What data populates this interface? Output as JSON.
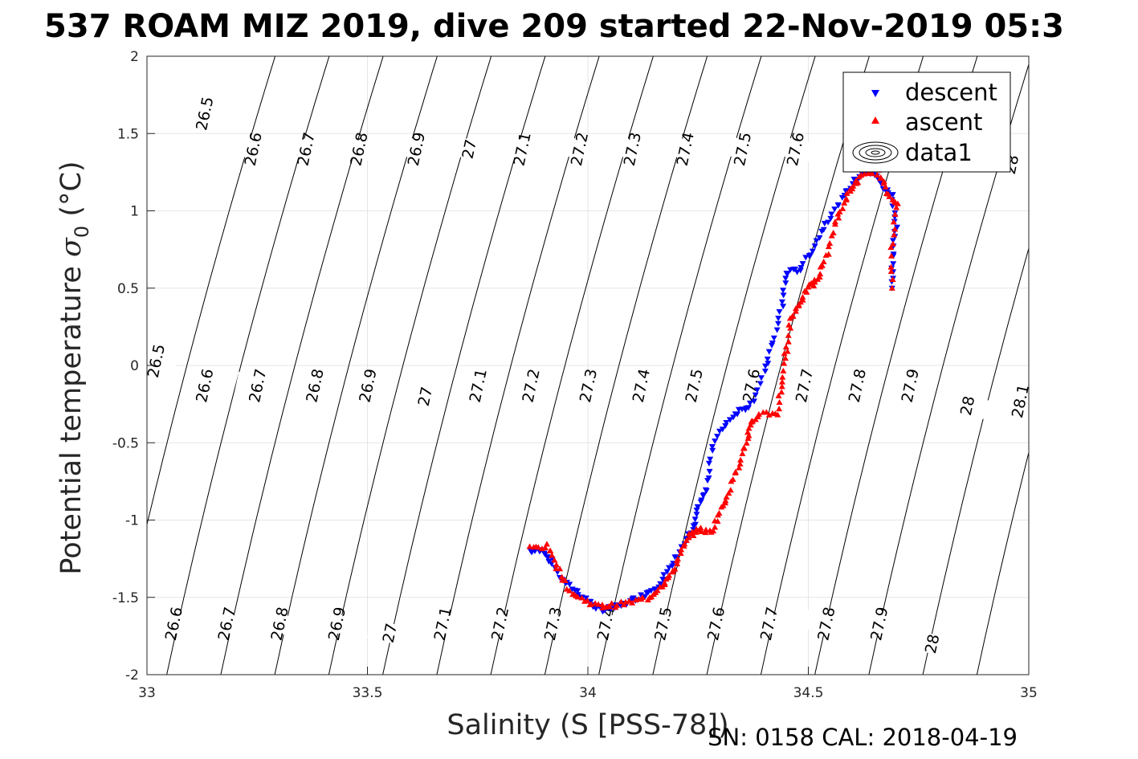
{
  "chart_data": {
    "type": "scatter",
    "title": "537 ROAM MIZ 2019, dive 209 started 22-Nov-2019 05:3",
    "xlabel": "Salinity (S [PSS-78])",
    "ylabel_main": "Potential temperature ",
    "ylabel_sigma": "σ",
    "ylabel_sub": "0",
    "ylabel_unit": " (°C)",
    "xlim": [
      33,
      35
    ],
    "ylim": [
      -2,
      2
    ],
    "xticks": [
      33,
      33.5,
      34,
      34.5,
      35
    ],
    "xtick_labels": [
      "33",
      "33.5",
      "34",
      "34.5",
      "35"
    ],
    "yticks": [
      -2,
      -1.5,
      -1,
      -0.5,
      0,
      0.5,
      1,
      1.5,
      2
    ],
    "ytick_labels": [
      "-2",
      "-1.5",
      "-1",
      "-0.5",
      "0",
      "0.5",
      "1",
      "1.5",
      "2"
    ],
    "grid": true,
    "legend_position": "top-right",
    "legend": [
      "descent",
      "ascent",
      "data1"
    ],
    "footer": "SN: 0158  CAL: 2018-04-19",
    "colors": {
      "descent": "#0000ff",
      "ascent": "#ff0000",
      "contour": "#000000",
      "grid": "#e6e6e6"
    },
    "density_contours": {
      "levels": [
        26.5,
        26.6,
        26.7,
        26.8,
        26.9,
        27,
        27.1,
        27.2,
        27.3,
        27.4,
        27.5,
        27.6,
        27.7,
        27.8,
        27.9,
        28,
        28.1
      ],
      "labels_top": [
        {
          "text": "26.5",
          "s": 33.13,
          "t": 1.63
        },
        {
          "text": "26.6",
          "s": 33.24,
          "t": 1.4
        },
        {
          "text": "26.7",
          "s": 33.36,
          "t": 1.4
        },
        {
          "text": "26.8",
          "s": 33.48,
          "t": 1.4
        },
        {
          "text": "26.9",
          "s": 33.61,
          "t": 1.4
        },
        {
          "text": "27",
          "s": 33.73,
          "t": 1.4
        },
        {
          "text": "27.1",
          "s": 33.85,
          "t": 1.4
        },
        {
          "text": "27.2",
          "s": 33.98,
          "t": 1.4
        },
        {
          "text": "27.3",
          "s": 34.1,
          "t": 1.4
        },
        {
          "text": "27.4",
          "s": 34.22,
          "t": 1.4
        },
        {
          "text": "27.5",
          "s": 34.35,
          "t": 1.4
        },
        {
          "text": "27.6",
          "s": 34.47,
          "t": 1.4
        },
        {
          "text": "28",
          "s": 34.96,
          "t": 1.3
        }
      ],
      "labels_mid": [
        {
          "text": "26.5",
          "s": 33.02,
          "t": 0.03
        },
        {
          "text": "26.6",
          "s": 33.13,
          "t": -0.13
        },
        {
          "text": "26.7",
          "s": 33.25,
          "t": -0.13
        },
        {
          "text": "26.8",
          "s": 33.38,
          "t": -0.13
        },
        {
          "text": "26.9",
          "s": 33.5,
          "t": -0.13
        },
        {
          "text": "27",
          "s": 33.63,
          "t": -0.2
        },
        {
          "text": "27.1",
          "s": 33.75,
          "t": -0.13
        },
        {
          "text": "27.2",
          "s": 33.87,
          "t": -0.13
        },
        {
          "text": "27.3",
          "s": 34.0,
          "t": -0.13
        },
        {
          "text": "27.4",
          "s": 34.12,
          "t": -0.13
        },
        {
          "text": "27.5",
          "s": 34.24,
          "t": -0.13
        },
        {
          "text": "27.6",
          "s": 34.37,
          "t": -0.13
        },
        {
          "text": "27.7",
          "s": 34.49,
          "t": -0.13
        },
        {
          "text": "27.8",
          "s": 34.61,
          "t": -0.13
        },
        {
          "text": "27.9",
          "s": 34.73,
          "t": -0.13
        },
        {
          "text": "28",
          "s": 34.86,
          "t": -0.26
        },
        {
          "text": "28.1",
          "s": 34.98,
          "t": -0.23
        }
      ],
      "labels_bottom": [
        {
          "text": "26.6",
          "s": 33.06,
          "t": -1.67
        },
        {
          "text": "26.7",
          "s": 33.18,
          "t": -1.67
        },
        {
          "text": "26.8",
          "s": 33.3,
          "t": -1.67
        },
        {
          "text": "26.9",
          "s": 33.43,
          "t": -1.67
        },
        {
          "text": "27",
          "s": 33.55,
          "t": -1.73
        },
        {
          "text": "27.1",
          "s": 33.67,
          "t": -1.67
        },
        {
          "text": "27.2",
          "s": 33.8,
          "t": -1.67
        },
        {
          "text": "27.3",
          "s": 33.92,
          "t": -1.67
        },
        {
          "text": "27.4",
          "s": 34.04,
          "t": -1.67
        },
        {
          "text": "27.5",
          "s": 34.17,
          "t": -1.67
        },
        {
          "text": "27.6",
          "s": 34.29,
          "t": -1.67
        },
        {
          "text": "27.7",
          "s": 34.41,
          "t": -1.67
        },
        {
          "text": "27.8",
          "s": 34.54,
          "t": -1.67
        },
        {
          "text": "27.9",
          "s": 34.66,
          "t": -1.67
        },
        {
          "text": "28",
          "s": 34.78,
          "t": -1.8
        }
      ]
    },
    "descent_path": [
      [
        33.87,
        -1.2
      ],
      [
        33.9,
        -1.2
      ],
      [
        33.92,
        -1.28
      ],
      [
        33.94,
        -1.38
      ],
      [
        33.97,
        -1.45
      ],
      [
        34.0,
        -1.52
      ],
      [
        34.02,
        -1.57
      ],
      [
        34.04,
        -1.58
      ],
      [
        34.07,
        -1.56
      ],
      [
        34.1,
        -1.52
      ],
      [
        34.13,
        -1.48
      ],
      [
        34.16,
        -1.42
      ],
      [
        34.19,
        -1.3
      ],
      [
        34.22,
        -1.15
      ],
      [
        34.24,
        -1.05
      ],
      [
        34.25,
        -0.9
      ],
      [
        34.27,
        -0.8
      ],
      [
        34.28,
        -0.55
      ],
      [
        34.31,
        -0.38
      ],
      [
        34.34,
        -0.3
      ],
      [
        34.37,
        -0.25
      ],
      [
        34.4,
        -0.05
      ],
      [
        34.42,
        0.15
      ],
      [
        34.44,
        0.38
      ],
      [
        34.45,
        0.6
      ],
      [
        34.48,
        0.62
      ],
      [
        34.51,
        0.75
      ],
      [
        34.54,
        0.92
      ],
      [
        34.57,
        1.05
      ],
      [
        34.6,
        1.18
      ],
      [
        34.63,
        1.25
      ],
      [
        34.65,
        1.25
      ],
      [
        34.67,
        1.15
      ],
      [
        34.69,
        1.1
      ],
      [
        34.7,
        0.9
      ],
      [
        34.69,
        0.7
      ],
      [
        34.69,
        0.5
      ]
    ],
    "ascent_path": [
      [
        33.87,
        -1.18
      ],
      [
        33.91,
        -1.17
      ],
      [
        33.93,
        -1.3
      ],
      [
        33.96,
        -1.46
      ],
      [
        33.99,
        -1.52
      ],
      [
        34.03,
        -1.56
      ],
      [
        34.06,
        -1.55
      ],
      [
        34.1,
        -1.53
      ],
      [
        34.14,
        -1.5
      ],
      [
        34.17,
        -1.42
      ],
      [
        34.19,
        -1.35
      ],
      [
        34.21,
        -1.22
      ],
      [
        34.23,
        -1.1
      ],
      [
        34.25,
        -1.06
      ],
      [
        34.28,
        -1.08
      ],
      [
        34.3,
        -0.95
      ],
      [
        34.32,
        -0.82
      ],
      [
        34.34,
        -0.65
      ],
      [
        34.36,
        -0.5
      ],
      [
        34.37,
        -0.38
      ],
      [
        34.39,
        -0.31
      ],
      [
        34.43,
        -0.31
      ],
      [
        34.44,
        -0.1
      ],
      [
        34.45,
        0.1
      ],
      [
        34.46,
        0.3
      ],
      [
        34.48,
        0.4
      ],
      [
        34.5,
        0.5
      ],
      [
        34.52,
        0.55
      ],
      [
        34.54,
        0.7
      ],
      [
        34.56,
        0.9
      ],
      [
        34.58,
        1.05
      ],
      [
        34.6,
        1.15
      ],
      [
        34.62,
        1.22
      ],
      [
        34.66,
        1.25
      ],
      [
        34.68,
        1.12
      ],
      [
        34.7,
        1.05
      ],
      [
        34.69,
        0.8
      ],
      [
        34.69,
        0.5
      ]
    ]
  }
}
